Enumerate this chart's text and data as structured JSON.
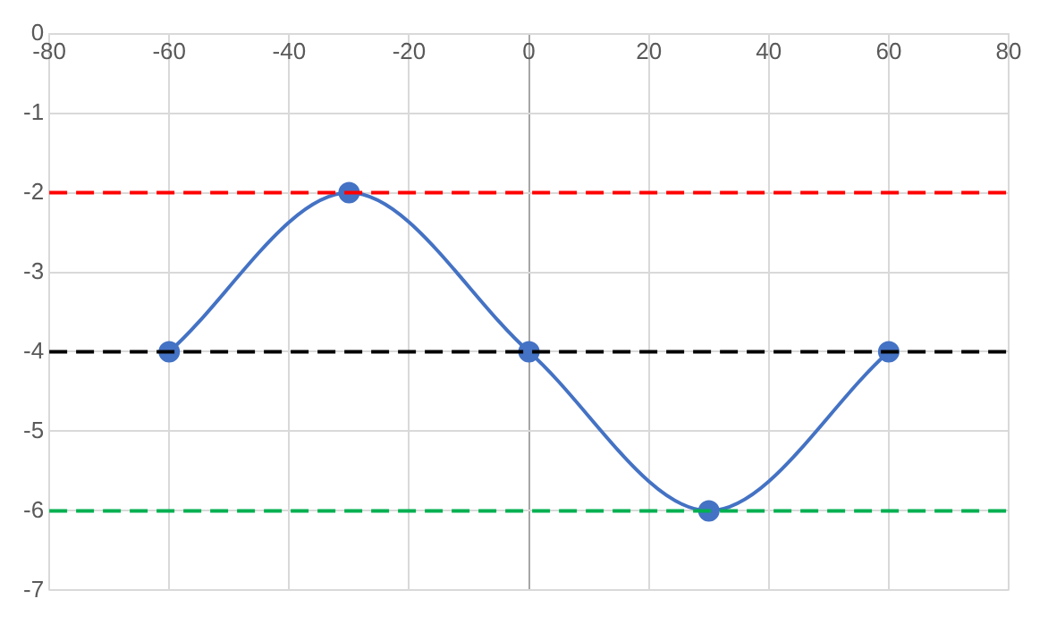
{
  "chart_data": {
    "type": "line",
    "x": [
      -60,
      -30,
      0,
      30,
      60
    ],
    "series": [
      {
        "color": "#4472c4",
        "values": [
          -4,
          -2,
          -4,
          -6,
          -4
        ]
      }
    ],
    "xlim": [
      -80,
      80
    ],
    "xticks": [
      -80,
      -60,
      -40,
      -20,
      0,
      20,
      40,
      60,
      80
    ],
    "ylim": [
      -7,
      0
    ],
    "yticks": [
      -7,
      -6,
      -5,
      -4,
      -3,
      -2,
      -1,
      0
    ],
    "grid": true,
    "marker": "circle",
    "ref_lines": [
      {
        "axis": "y",
        "value": -2,
        "color": "#ff0000",
        "line_style": "dashed"
      },
      {
        "axis": "y",
        "value": -4,
        "color": "#000000",
        "line_style": "dashed"
      },
      {
        "axis": "y",
        "value": -6,
        "color": "#00b050",
        "line_style": "dashed"
      }
    ]
  }
}
